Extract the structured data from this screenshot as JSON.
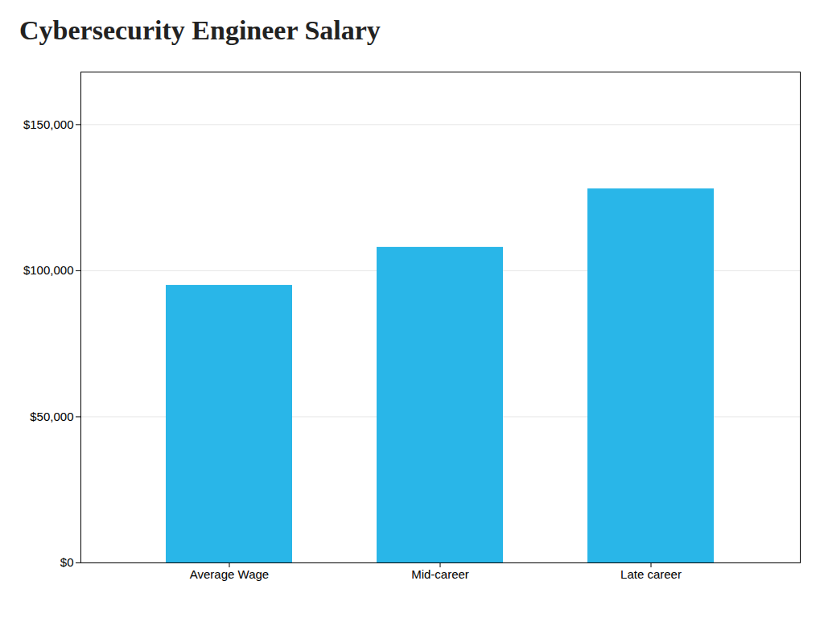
{
  "chart_data": {
    "type": "bar",
    "title": "Cybersecurity Engineer Salary",
    "categories": [
      "Average Wage",
      "Mid-career",
      "Late career"
    ],
    "values": [
      95000,
      108000,
      128000
    ],
    "color": "#29b6e8",
    "ylim": [
      0,
      168000
    ],
    "yticks": [
      {
        "value": 0,
        "label": "$0"
      },
      {
        "value": 50000,
        "label": "$50,000"
      },
      {
        "value": 100000,
        "label": "$100,000"
      },
      {
        "value": 150000,
        "label": "$150,000"
      }
    ],
    "grid": true
  }
}
